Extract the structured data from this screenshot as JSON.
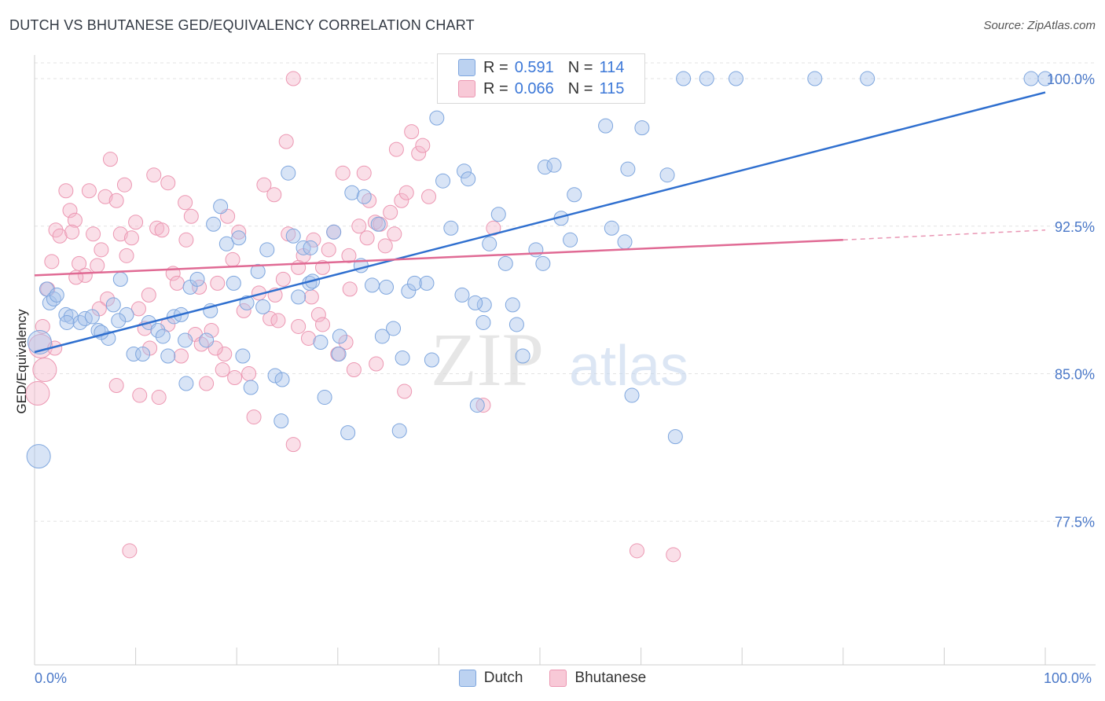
{
  "header": {
    "title": "DUTCH VS BHUTANESE GED/EQUIVALENCY CORRELATION CHART",
    "source": "Source: ZipAtlas.com"
  },
  "legend": {
    "dutch": {
      "r_label": "R =",
      "r_value": "0.591",
      "n_label": "N =",
      "n_value": "114"
    },
    "bhutanese": {
      "r_label": "R =",
      "r_value": "0.066",
      "n_label": "N =",
      "n_value": "115"
    }
  },
  "watermark": {
    "zip": "ZIP",
    "atlas": "atlas"
  },
  "colors": {
    "dutch_fill": "#a9c4ec",
    "dutch_stroke": "#7ea6de",
    "dutch_line": "#2f6fcf",
    "bhutanese_fill": "#f5b8cb",
    "bhutanese_stroke": "#ec97b2",
    "bhutanese_line": "#e06a94",
    "tick_label": "#4a78c8",
    "grid": "#e3e3e3"
  },
  "chart_data": {
    "type": "scatter",
    "title": "DUTCH VS BHUTANESE GED/EQUIVALENCY CORRELATION CHART",
    "xlabel": "",
    "ylabel": "GED/Equivalency",
    "xlim": [
      0,
      100
    ],
    "ylim": [
      70.2,
      101.2
    ],
    "x_tick_labels": [
      "0.0%",
      "100.0%"
    ],
    "y_ticks": [
      77.5,
      85.0,
      92.5,
      100.0
    ],
    "y_tick_labels": [
      "77.5%",
      "85.0%",
      "92.5%",
      "100.0%"
    ],
    "grid": true,
    "legend_position": "top-center",
    "series": [
      {
        "name": "Dutch",
        "trend": {
          "x": [
            0,
            100
          ],
          "y": [
            86.1,
            99.3
          ]
        },
        "points": [
          [
            1.2,
            89.3
          ],
          [
            1.5,
            88.6
          ],
          [
            1.9,
            88.8
          ],
          [
            2.2,
            89.0
          ],
          [
            3.1,
            88.0
          ],
          [
            3.6,
            87.9
          ],
          [
            4.5,
            87.6
          ],
          [
            5.0,
            87.8
          ],
          [
            6.3,
            87.2
          ],
          [
            5.7,
            87.9
          ],
          [
            7.3,
            86.8
          ],
          [
            7.8,
            88.5
          ],
          [
            8.5,
            89.8
          ],
          [
            9.1,
            88.0
          ],
          [
            9.8,
            86.0
          ],
          [
            10.7,
            86.0
          ],
          [
            11.3,
            87.6
          ],
          [
            12.2,
            87.2
          ],
          [
            12.7,
            86.9
          ],
          [
            13.2,
            85.9
          ],
          [
            13.8,
            87.9
          ],
          [
            14.5,
            88.0
          ],
          [
            15.0,
            84.5
          ],
          [
            15.4,
            89.4
          ],
          [
            16.1,
            89.8
          ],
          [
            17.4,
            88.2
          ],
          [
            17.7,
            92.6
          ],
          [
            18.4,
            93.5
          ],
          [
            19.0,
            91.6
          ],
          [
            19.7,
            89.6
          ],
          [
            20.2,
            91.9
          ],
          [
            21.0,
            88.6
          ],
          [
            21.4,
            84.3
          ],
          [
            22.1,
            90.2
          ],
          [
            22.6,
            88.4
          ],
          [
            23.0,
            91.3
          ],
          [
            23.8,
            84.9
          ],
          [
            24.5,
            84.7
          ],
          [
            25.1,
            95.2
          ],
          [
            25.6,
            92.0
          ],
          [
            26.1,
            88.9
          ],
          [
            26.6,
            91.4
          ],
          [
            27.2,
            89.6
          ],
          [
            27.5,
            89.7
          ],
          [
            28.3,
            86.6
          ],
          [
            28.7,
            83.8
          ],
          [
            29.6,
            92.2
          ],
          [
            30.2,
            86.9
          ],
          [
            31.0,
            82.0
          ],
          [
            31.4,
            94.2
          ],
          [
            32.3,
            90.5
          ],
          [
            32.6,
            94.0
          ],
          [
            33.4,
            89.5
          ],
          [
            34.0,
            92.6
          ],
          [
            34.8,
            89.4
          ],
          [
            35.5,
            87.3
          ],
          [
            36.4,
            85.8
          ],
          [
            37.0,
            89.2
          ],
          [
            37.6,
            89.6
          ],
          [
            39.3,
            85.7
          ],
          [
            39.8,
            98.0
          ],
          [
            40.4,
            94.8
          ],
          [
            41.2,
            92.4
          ],
          [
            42.5,
            95.3
          ],
          [
            42.9,
            94.9
          ],
          [
            43.8,
            83.4
          ],
          [
            45.0,
            91.6
          ],
          [
            45.9,
            93.1
          ],
          [
            46.6,
            90.6
          ],
          [
            47.3,
            88.5
          ],
          [
            47.7,
            87.5
          ],
          [
            48.3,
            85.9
          ],
          [
            49.6,
            91.3
          ],
          [
            50.5,
            95.5
          ],
          [
            51.4,
            95.6
          ],
          [
            52.1,
            92.9
          ],
          [
            53.0,
            91.8
          ],
          [
            53.4,
            94.1
          ],
          [
            53.9,
            99.5
          ],
          [
            55.3,
            99.3
          ],
          [
            56.5,
            97.6
          ],
          [
            57.1,
            92.4
          ],
          [
            58.7,
            95.4
          ],
          [
            59.1,
            83.9
          ],
          [
            60.1,
            97.5
          ],
          [
            62.6,
            95.1
          ],
          [
            63.4,
            81.8
          ],
          [
            64.2,
            100.0
          ],
          [
            66.5,
            100.0
          ],
          [
            69.4,
            100.0
          ],
          [
            77.2,
            100.0
          ],
          [
            82.4,
            100.0
          ],
          [
            98.6,
            100.0
          ],
          [
            100.0,
            100.0
          ],
          [
            34.4,
            86.9
          ],
          [
            30.1,
            86.0
          ],
          [
            27.3,
            91.4
          ],
          [
            38.8,
            89.6
          ],
          [
            42.3,
            89.0
          ],
          [
            17.0,
            86.7
          ],
          [
            0.5,
            86.6
          ],
          [
            0.4,
            80.8
          ],
          [
            44.5,
            88.5
          ],
          [
            14.9,
            86.7
          ],
          [
            20.6,
            85.9
          ],
          [
            36.1,
            82.1
          ],
          [
            44.4,
            87.6
          ],
          [
            24.4,
            82.6
          ],
          [
            8.3,
            87.7
          ],
          [
            50.3,
            90.6
          ],
          [
            3.2,
            87.6
          ],
          [
            6.6,
            87.1
          ],
          [
            58.4,
            91.7
          ],
          [
            43.6,
            88.6
          ]
        ]
      },
      {
        "name": "Bhutanese",
        "trend": {
          "x": [
            0,
            80
          ],
          "y": [
            90.0,
            91.8
          ]
        },
        "trend_dashed": {
          "x": [
            80,
            100
          ],
          "y": [
            91.8,
            92.3
          ]
        },
        "points": [
          [
            0.3,
            84.0
          ],
          [
            0.6,
            86.4
          ],
          [
            0.8,
            87.4
          ],
          [
            1.3,
            89.3
          ],
          [
            1.7,
            90.7
          ],
          [
            2.1,
            92.3
          ],
          [
            2.5,
            92.0
          ],
          [
            3.1,
            94.3
          ],
          [
            3.5,
            93.3
          ],
          [
            4.0,
            92.8
          ],
          [
            4.4,
            90.6
          ],
          [
            5.0,
            90.0
          ],
          [
            5.4,
            94.3
          ],
          [
            5.8,
            92.1
          ],
          [
            6.2,
            90.5
          ],
          [
            6.6,
            91.3
          ],
          [
            7.0,
            94.0
          ],
          [
            7.5,
            95.9
          ],
          [
            8.1,
            84.4
          ],
          [
            8.5,
            92.1
          ],
          [
            8.9,
            94.6
          ],
          [
            9.6,
            91.9
          ],
          [
            10.0,
            92.7
          ],
          [
            10.4,
            83.9
          ],
          [
            10.9,
            87.3
          ],
          [
            11.3,
            89.0
          ],
          [
            11.8,
            95.1
          ],
          [
            12.1,
            92.4
          ],
          [
            12.6,
            92.3
          ],
          [
            13.2,
            94.7
          ],
          [
            13.7,
            90.1
          ],
          [
            14.1,
            89.6
          ],
          [
            14.5,
            85.9
          ],
          [
            15.0,
            91.8
          ],
          [
            15.5,
            93.0
          ],
          [
            15.9,
            87.0
          ],
          [
            16.5,
            86.5
          ],
          [
            17.0,
            84.5
          ],
          [
            17.5,
            87.2
          ],
          [
            18.1,
            89.6
          ],
          [
            18.6,
            85.2
          ],
          [
            19.1,
            93.0
          ],
          [
            19.6,
            90.8
          ],
          [
            20.2,
            92.2
          ],
          [
            20.7,
            88.2
          ],
          [
            21.2,
            85.0
          ],
          [
            21.7,
            82.8
          ],
          [
            22.2,
            89.1
          ],
          [
            22.7,
            94.6
          ],
          [
            23.3,
            87.8
          ],
          [
            23.8,
            89.0
          ],
          [
            24.1,
            87.7
          ],
          [
            24.6,
            89.8
          ],
          [
            25.1,
            92.1
          ],
          [
            25.6,
            81.4
          ],
          [
            26.1,
            90.4
          ],
          [
            26.6,
            91.0
          ],
          [
            27.1,
            86.8
          ],
          [
            27.6,
            91.8
          ],
          [
            28.1,
            88.0
          ],
          [
            28.5,
            87.5
          ],
          [
            29.1,
            91.3
          ],
          [
            29.6,
            92.2
          ],
          [
            30.0,
            86.0
          ],
          [
            30.5,
            95.2
          ],
          [
            31.1,
            91.0
          ],
          [
            31.6,
            85.2
          ],
          [
            32.1,
            92.5
          ],
          [
            32.6,
            95.2
          ],
          [
            33.1,
            93.8
          ],
          [
            33.7,
            92.7
          ],
          [
            34.2,
            92.6
          ],
          [
            34.7,
            91.5
          ],
          [
            35.2,
            93.2
          ],
          [
            35.8,
            96.4
          ],
          [
            36.3,
            93.8
          ],
          [
            36.8,
            94.2
          ],
          [
            37.3,
            97.3
          ],
          [
            38.0,
            96.2
          ],
          [
            38.4,
            96.6
          ],
          [
            39.0,
            94.0
          ],
          [
            9.4,
            76.0
          ],
          [
            59.6,
            76.0
          ],
          [
            63.2,
            75.8
          ],
          [
            1.0,
            85.2
          ],
          [
            12.3,
            83.8
          ],
          [
            19.8,
            84.8
          ],
          [
            2.0,
            86.3
          ],
          [
            36.6,
            84.1
          ],
          [
            8.1,
            93.8
          ],
          [
            3.7,
            92.2
          ],
          [
            7.2,
            88.8
          ],
          [
            14.9,
            93.7
          ],
          [
            18.8,
            86.0
          ],
          [
            24.9,
            96.8
          ],
          [
            25.6,
            100.0
          ],
          [
            28.5,
            90.4
          ],
          [
            30.8,
            86.6
          ],
          [
            33.8,
            85.5
          ],
          [
            44.4,
            83.4
          ],
          [
            45.4,
            92.4
          ],
          [
            23.7,
            94.1
          ],
          [
            16.3,
            89.4
          ],
          [
            11.4,
            86.3
          ],
          [
            10.3,
            88.3
          ],
          [
            27.4,
            88.9
          ],
          [
            31.2,
            89.3
          ],
          [
            35.6,
            92.1
          ],
          [
            32.9,
            91.9
          ],
          [
            17.9,
            86.3
          ],
          [
            13.2,
            87.5
          ],
          [
            4.1,
            89.9
          ],
          [
            9.1,
            91.0
          ],
          [
            6.4,
            88.3
          ],
          [
            26.1,
            87.4
          ]
        ]
      }
    ]
  },
  "bottom_legend": {
    "dutch_label": "Dutch",
    "bhutanese_label": "Bhutanese"
  }
}
